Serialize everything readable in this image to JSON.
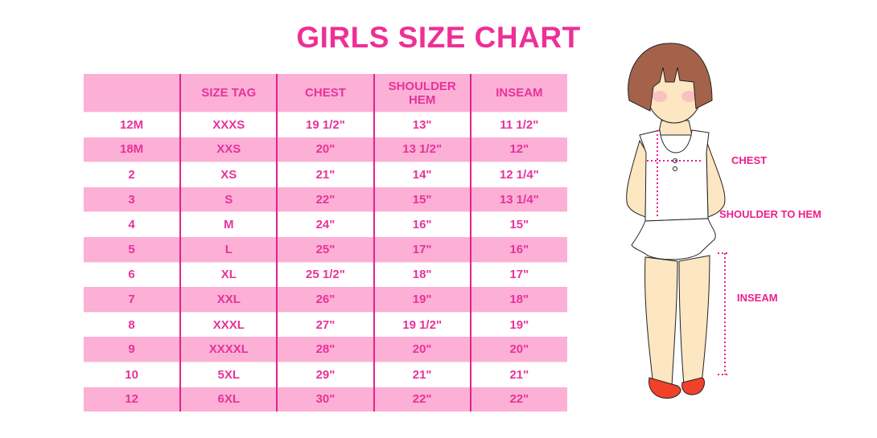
{
  "title": "GIRLS SIZE CHART",
  "table": {
    "headers": [
      "",
      "SIZE TAG",
      "CHEST",
      "SHOULDER HEM",
      "INSEAM"
    ],
    "rows": [
      [
        "12M",
        "XXXS",
        "19 1/2\"",
        "13\"",
        "11 1/2\""
      ],
      [
        "18M",
        "XXS",
        "20\"",
        "13 1/2\"",
        "12\""
      ],
      [
        "2",
        "XS",
        "21\"",
        "14\"",
        "12 1/4\""
      ],
      [
        "3",
        "S",
        "22\"",
        "15\"",
        "13 1/4\""
      ],
      [
        "4",
        "M",
        "24\"",
        "16\"",
        "15\""
      ],
      [
        "5",
        "L",
        "25\"",
        "17\"",
        "16\""
      ],
      [
        "6",
        "XL",
        "25 1/2\"",
        "18\"",
        "17\""
      ],
      [
        "7",
        "XXL",
        "26\"",
        "19\"",
        "18\""
      ],
      [
        "8",
        "XXXL",
        "27\"",
        "19 1/2\"",
        "19\""
      ],
      [
        "9",
        "XXXXL",
        "28\"",
        "20\"",
        "20\""
      ],
      [
        "10",
        "5XL",
        "29\"",
        "21\"",
        "21\""
      ],
      [
        "12",
        "6XL",
        "30\"",
        "22\"",
        "22\""
      ]
    ]
  },
  "illustration": {
    "labels": {
      "chest": "CHEST",
      "shoulder_to_hem": "SHOULDER TO HEM",
      "inseam": "INSEAM"
    }
  },
  "colors": {
    "accent": "#ee2f96",
    "row_pink": "#fcb0d5",
    "divider": "#e5218d"
  }
}
